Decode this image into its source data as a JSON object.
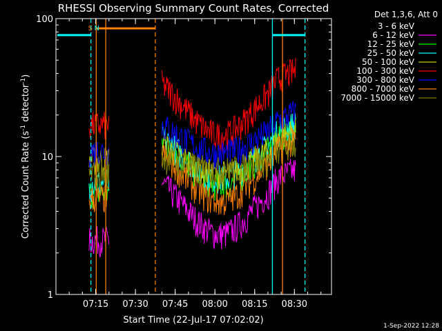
{
  "chart_data": {
    "type": "line",
    "title": "RHESSI Observing Summary Count Rates, Corrected",
    "xlabel": "Start Time (22-Jul-17 07:02:02)",
    "ylabel_main": "Corrected Count Rate (s",
    "ylabel_sup": "-1",
    "ylabel_mid": " detector",
    "ylabel_sup2": "-1",
    "ylabel_end": ")",
    "yscale": "log",
    "ylim": [
      1,
      100
    ],
    "xlim_minutes": [
      7.08,
      16.97
    ],
    "x_ticks": [
      {
        "label": "07:15",
        "t": 15
      },
      {
        "label": "07:30",
        "t": 30
      },
      {
        "label": "07:45",
        "t": 45
      },
      {
        "label": "08:00",
        "t": 60
      },
      {
        "label": "08:15",
        "t": 75
      },
      {
        "label": "08:30",
        "t": 90
      }
    ],
    "y_ticks": [
      {
        "label": "1",
        "v": 1
      },
      {
        "label": "10",
        "v": 10
      },
      {
        "label": "100",
        "v": 100
      }
    ],
    "legend_title": "Det 1,3,6, Att 0",
    "legend_position": "top-right",
    "series": [
      {
        "name": "3 - 6 keV",
        "color": "#000000",
        "level_a": 8.5,
        "level_b": 9.5,
        "mid_dip": 1.0
      },
      {
        "name": "6 - 12 keV",
        "color": "#ff00ff",
        "level_a": 2.5,
        "level_b": 6.5,
        "mid_dip": 0.42
      },
      {
        "name": "12 - 25 keV",
        "color": "#00ff00",
        "level_a": 5.5,
        "level_b": 13.0,
        "mid_dip": 0.48
      },
      {
        "name": "25 - 50 keV",
        "color": "#00ffff",
        "level_a": 6.5,
        "level_b": 14.0,
        "mid_dip": 0.5
      },
      {
        "name": "50 - 100 keV",
        "color": "#c8c800",
        "level_a": 9.5,
        "level_b": 12.5,
        "mid_dip": 0.6
      },
      {
        "name": "100 - 300 keV",
        "color": "#ff0000",
        "level_a": 17.0,
        "level_b": 34.0,
        "mid_dip": 0.42
      },
      {
        "name": "300 - 800 keV",
        "color": "#0000ff",
        "level_a": 11.0,
        "level_b": 17.0,
        "mid_dip": 0.62
      },
      {
        "name": "800 - 7000 keV",
        "color": "#ff8000",
        "level_a": 5.0,
        "level_b": 10.5,
        "mid_dip": 0.45
      },
      {
        "name": "7000 - 15000 keV",
        "color": "#808000",
        "level_a": 7.5,
        "level_b": 10.0,
        "mid_dip": 0.8
      }
    ],
    "data_segments": [
      {
        "t_start": 12.5,
        "t_end": 20.0
      },
      {
        "t_start": 40.0,
        "t_end": 90.5
      }
    ],
    "annotations": [
      {
        "text": "S",
        "color": "#ff8000",
        "t": 13.2
      },
      {
        "text": "N",
        "color": "#00ffff",
        "t": 15.5
      }
    ],
    "vlines": [
      {
        "t": 13.2,
        "color": "#00ffff",
        "dash": true
      },
      {
        "t": 15.2,
        "color": "#ff8000",
        "dash": false
      },
      {
        "t": 18.8,
        "color": "#ff8000",
        "dash": false
      },
      {
        "t": 37.5,
        "color": "#ff8000",
        "dash": true
      },
      {
        "t": 81.7,
        "color": "#00ffff",
        "dash": false
      },
      {
        "t": 85.5,
        "color": "#ff8000",
        "dash": false
      },
      {
        "t": 94.0,
        "color": "#00ffff",
        "dash": true
      }
    ],
    "hbars": [
      {
        "t0": 0.5,
        "t1": 13.2,
        "v": 76,
        "color": "#00ffff"
      },
      {
        "t0": 15.2,
        "t1": 37.5,
        "v": 85,
        "color": "#ff8000"
      },
      {
        "t0": 81.7,
        "t1": 94.0,
        "v": 76,
        "color": "#00ffff"
      }
    ]
  },
  "footer_date": "1-Sep-2022 12:28"
}
